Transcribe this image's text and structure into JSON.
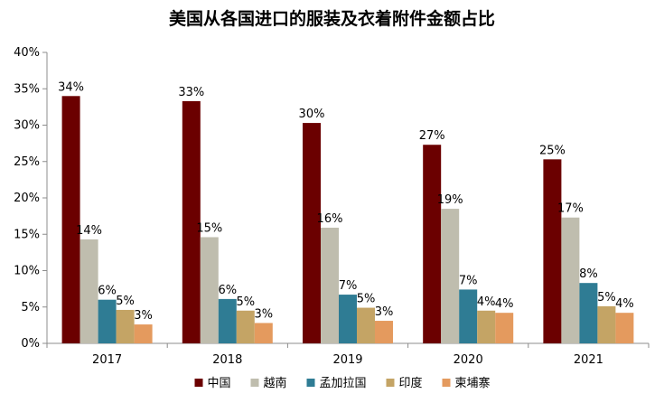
{
  "chart_data": {
    "type": "bar",
    "title": "美国从各国进口的服装及衣着附件金额占比",
    "categories": [
      "2017",
      "2018",
      "2019",
      "2020",
      "2021"
    ],
    "y_tick_labels": [
      "0%",
      "5%",
      "10%",
      "15%",
      "20%",
      "25%",
      "30%",
      "35%",
      "40%"
    ],
    "ylim": [
      0,
      40
    ],
    "grid": false,
    "legend_position": "bottom",
    "series": [
      {
        "name": "中国",
        "color": "#6B0000",
        "values": [
          34,
          33.3,
          30.3,
          27.3,
          25.3
        ],
        "labels": [
          "34%",
          "33%",
          "30%",
          "27%",
          "25%"
        ]
      },
      {
        "name": "越南",
        "color": "#BFBDAE",
        "values": [
          14.3,
          14.6,
          15.9,
          18.5,
          17.3
        ],
        "labels": [
          "14%",
          "15%",
          "16%",
          "19%",
          "17%"
        ]
      },
      {
        "name": "孟加拉国",
        "color": "#2F7C94",
        "values": [
          6,
          6.1,
          6.7,
          7.4,
          8.3
        ],
        "labels": [
          "6%",
          "6%",
          "7%",
          "7%",
          "8%"
        ]
      },
      {
        "name": "印度",
        "color": "#C4A465",
        "values": [
          4.6,
          4.5,
          4.9,
          4.5,
          5.1
        ],
        "labels": [
          "5%",
          "5%",
          "5%",
          "4%",
          "5%"
        ]
      },
      {
        "name": "柬埔寨",
        "color": "#E49A5E",
        "values": [
          2.6,
          2.8,
          3.1,
          4.2,
          4.2
        ],
        "labels": [
          "3%",
          "3%",
          "3%",
          "4%",
          "4%"
        ]
      }
    ]
  }
}
